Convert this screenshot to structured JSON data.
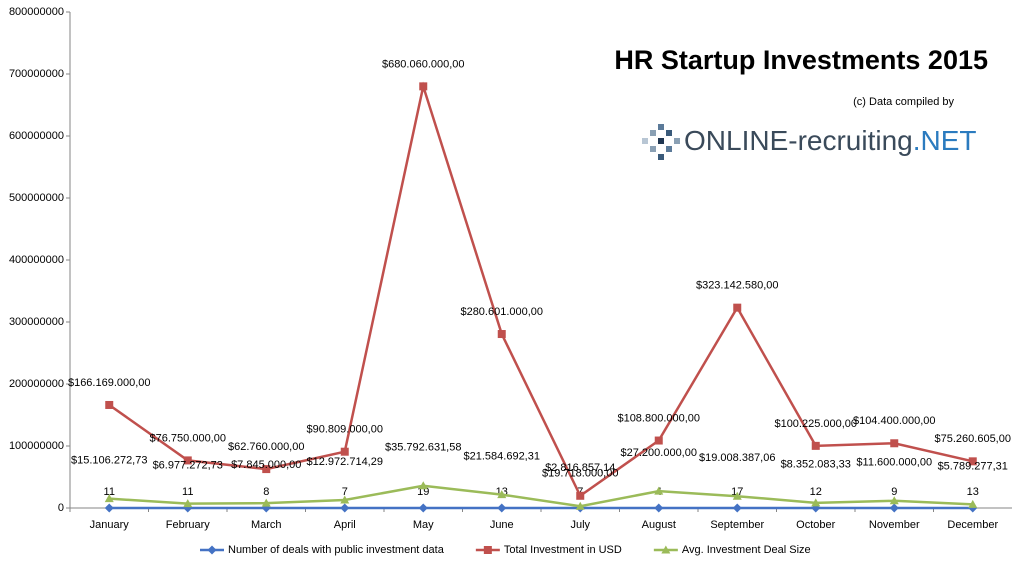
{
  "chart_data": {
    "type": "line",
    "title": "HR Startup Investments 2015",
    "credit": "(c) Data compiled by",
    "logo": {
      "text": "ONLINE-recruiting",
      "suffix": ".NET"
    },
    "categories": [
      "January",
      "February",
      "March",
      "April",
      "May",
      "June",
      "July",
      "August",
      "September",
      "October",
      "November",
      "December"
    ],
    "series": [
      {
        "name": "Number of deals with public investment data",
        "color": "#4472c4",
        "marker": "diamond",
        "values": [
          11,
          11,
          8,
          7,
          19,
          13,
          7,
          4,
          17,
          12,
          9,
          13
        ]
      },
      {
        "name": "Total Investment in USD",
        "color": "#c0504d",
        "marker": "square",
        "values": [
          166169000,
          76750000,
          62760000,
          90809000,
          680060000,
          280601000,
          19718000,
          108800000,
          323142580,
          100225000,
          104400000,
          75260605
        ],
        "value_labels": [
          "$166.169.000,00",
          "$76.750.000,00",
          "$62.760.000,00",
          "$90.809.000,00",
          "$680.060.000,00",
          "$280.601.000,00",
          "$19.718.000,00",
          "$108.800.000,00",
          "$323.142.580,00",
          "$100.225.000,00",
          "$104.400.000,00",
          "$75.260.605,00"
        ]
      },
      {
        "name": "Avg. Investment Deal Size",
        "color": "#9bbb59",
        "marker": "triangle",
        "values": [
          15106272.73,
          6977272.73,
          7845000,
          12972714.29,
          35792631.58,
          21584692.31,
          2816857.14,
          27200000,
          19008387.06,
          8352083.33,
          11600000,
          5789277.31
        ],
        "value_labels": [
          "$15.106.272,73",
          "$6.977.272,73",
          "$7.845.000,00",
          "$12.972.714,29",
          "$35.792.631,58",
          "$21.584.692,31",
          "$2.816.857,14",
          "$27.200.000,00",
          "$19.008.387,06",
          "$8.352.083,33",
          "$11.600.000,00",
          "$5.789.277,31"
        ]
      }
    ],
    "ylim": [
      0,
      800000000
    ],
    "yticks": [
      0,
      100000000,
      200000000,
      300000000,
      400000000,
      500000000,
      600000000,
      700000000,
      800000000
    ],
    "grid": false
  }
}
